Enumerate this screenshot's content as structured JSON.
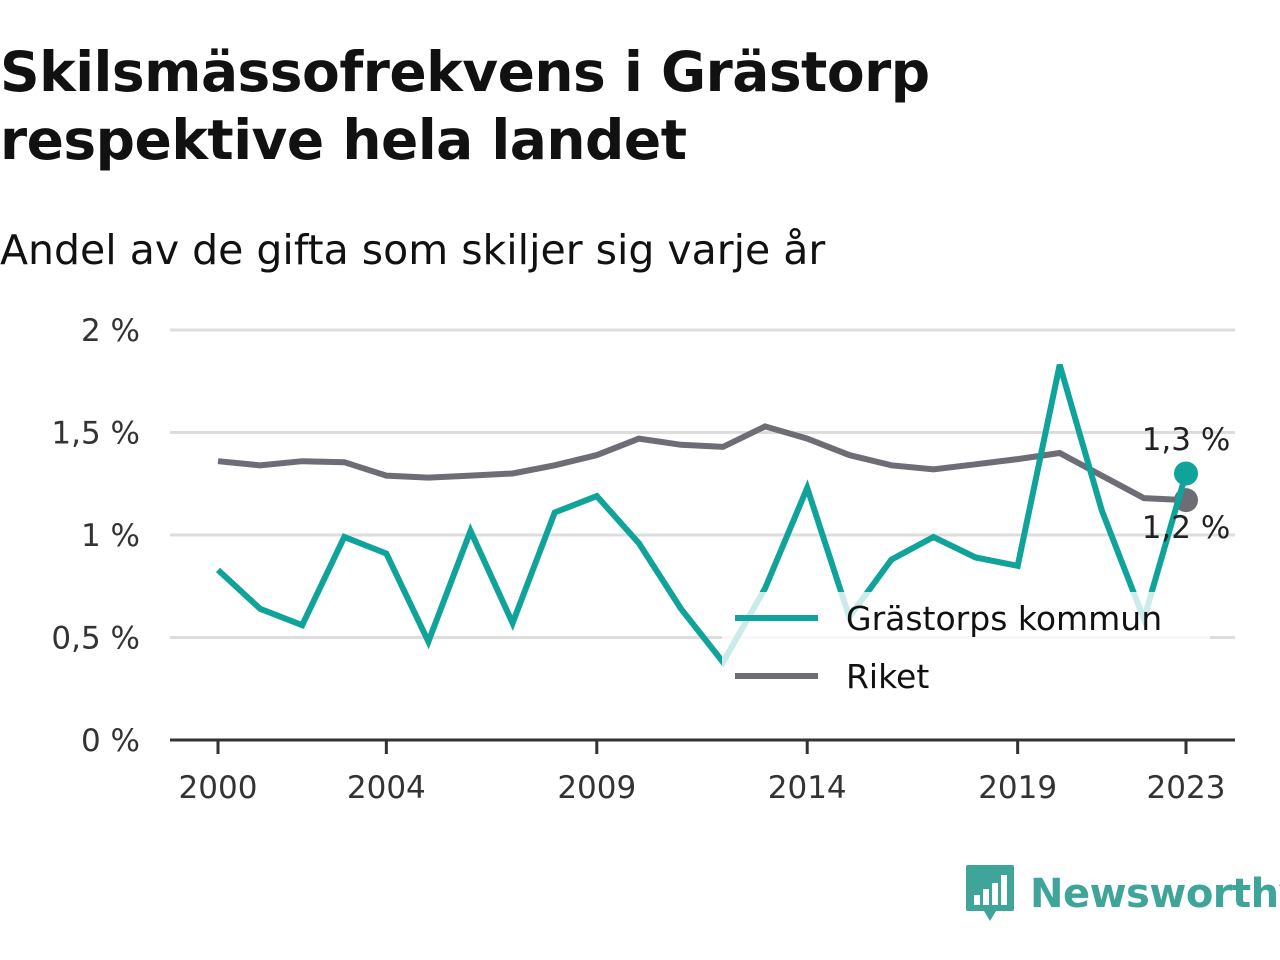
{
  "title_line1": "Skilsmässofrekvens i Grästorp",
  "title_line2": "respektive hela landet",
  "subtitle": "Andel av de gifta som skiljer sig varje år",
  "brand": {
    "name": "Newsworthy",
    "icon": "newsworthy-logo-icon",
    "color": "#3fa59a"
  },
  "chart_data": {
    "type": "line",
    "title": "Skilsmässofrekvens i Grästorp respektive hela landet",
    "subtitle": "Andel av de gifta som skiljer sig varje år",
    "x": [
      2000,
      2001,
      2002,
      2003,
      2004,
      2005,
      2006,
      2007,
      2008,
      2009,
      2010,
      2011,
      2012,
      2013,
      2014,
      2015,
      2016,
      2017,
      2018,
      2019,
      2020,
      2021,
      2022,
      2023
    ],
    "xlim": [
      2000,
      2023
    ],
    "x_ticks": [
      2000,
      2004,
      2009,
      2014,
      2019,
      2023
    ],
    "ylim": [
      0,
      2
    ],
    "y_ticks": [
      0,
      0.5,
      1,
      1.5,
      2
    ],
    "y_tick_labels": [
      "0 %",
      "0,5 %",
      "1 %",
      "1,5 %",
      "2 %"
    ],
    "grid": "horizontal",
    "legend_position": "bottom-right",
    "series": [
      {
        "name": "Grästorps kommun",
        "color": "#0fa39a",
        "values": [
          0.83,
          0.64,
          0.56,
          0.99,
          0.91,
          0.48,
          1.02,
          0.57,
          1.11,
          1.19,
          0.96,
          0.64,
          0.38,
          0.74,
          1.23,
          0.6,
          0.88,
          0.99,
          0.89,
          0.85,
          1.83,
          1.12,
          0.59,
          1.3
        ],
        "end_label": "1,3 %"
      },
      {
        "name": "Riket",
        "color": "#6e6c75",
        "values": [
          1.36,
          1.34,
          1.36,
          1.355,
          1.29,
          1.28,
          1.29,
          1.3,
          1.34,
          1.39,
          1.47,
          1.44,
          1.43,
          1.53,
          1.47,
          1.39,
          1.34,
          1.32,
          1.345,
          1.37,
          1.4,
          1.29,
          1.18,
          1.17
        ],
        "end_label": "1,2 %"
      }
    ]
  }
}
